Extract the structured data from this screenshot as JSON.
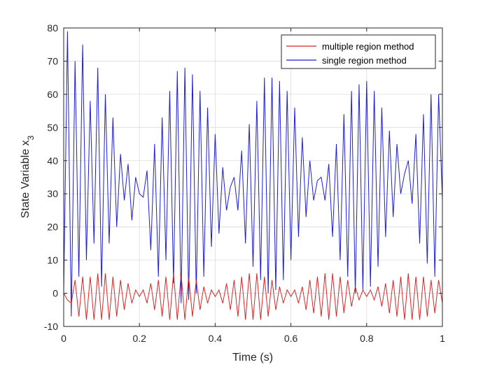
{
  "chart_data": {
    "type": "line",
    "title": "",
    "xlabel": "Time (s)",
    "ylabel": "State Variable x",
    "ylabel_subscript": "3",
    "xlim": [
      0,
      1
    ],
    "ylim": [
      -10,
      80
    ],
    "xticks": [
      "0",
      "0.2",
      "0.4",
      "0.6",
      "0.8",
      "1"
    ],
    "yticks": [
      "-10",
      "0",
      "10",
      "20",
      "30",
      "40",
      "50",
      "60",
      "70",
      "80"
    ],
    "grid": true,
    "legend_position": "top-right",
    "series": [
      {
        "name": "multiple region method",
        "color": "#d62728",
        "dt": 0.01,
        "values": [
          0,
          -2,
          -3,
          4,
          -7,
          5,
          -8,
          5,
          -8,
          6,
          -8,
          6,
          -8,
          5,
          -7,
          4,
          -5,
          3,
          -3,
          1,
          -1,
          1,
          -3,
          3,
          -5,
          4,
          -7,
          5,
          -8,
          6,
          -8,
          6,
          -8,
          5,
          -7,
          4,
          -5,
          2,
          -3,
          1,
          -1,
          1,
          -3,
          3,
          -5,
          4,
          -7,
          5,
          -8,
          6,
          -8,
          6,
          -8,
          5,
          -7,
          4,
          -5,
          2,
          -3,
          1,
          -1,
          1,
          -3,
          2,
          -5,
          4,
          -6,
          5,
          -7,
          6,
          -8,
          6,
          -7,
          5,
          -6,
          4,
          -4,
          2,
          -2,
          1,
          -1,
          1,
          -2,
          2,
          -4,
          3,
          -6,
          4,
          -7,
          5,
          -8,
          6,
          -8,
          5,
          -8,
          5,
          -7,
          4,
          -6,
          4,
          -3
        ]
      },
      {
        "name": "single region method",
        "color": "#1f1fd1",
        "dt": 0.01,
        "values": [
          0,
          79,
          -7,
          70,
          5,
          75,
          10,
          58,
          15,
          68,
          2,
          60,
          15,
          53,
          20,
          42,
          28,
          39,
          22,
          35,
          30,
          29,
          37,
          13,
          45,
          5,
          53,
          10,
          61,
          3,
          67,
          -3,
          68,
          -2,
          66,
          0,
          61,
          5,
          56,
          14,
          48,
          18,
          38,
          25,
          32,
          35,
          25,
          43,
          15,
          51,
          8,
          58,
          4,
          65,
          0,
          65,
          1,
          64,
          4,
          61,
          10,
          56,
          17,
          47,
          23,
          40,
          28,
          34,
          35,
          28,
          39,
          17,
          45,
          10,
          54,
          5,
          61,
          0,
          63,
          1,
          64,
          2,
          61,
          8,
          56,
          17,
          49,
          23,
          45,
          30,
          36,
          40,
          27,
          48,
          15,
          54,
          9,
          60,
          5,
          60,
          28
        ]
      }
    ]
  }
}
